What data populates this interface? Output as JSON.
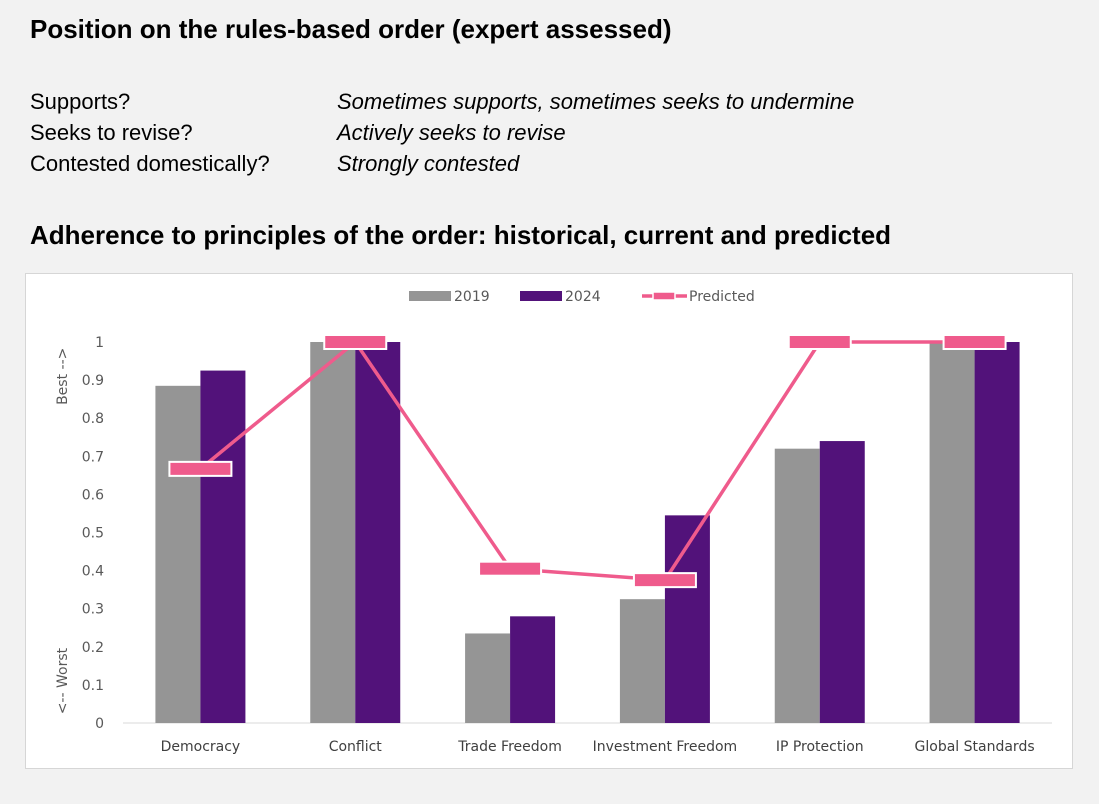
{
  "header": {
    "title": "Position on the rules-based order (expert assessed)"
  },
  "position": [
    {
      "label": "Supports?",
      "value": "Sometimes supports, sometimes seeks to undermine"
    },
    {
      "label": "Seeks to revise?",
      "value": "Actively seeks to revise"
    },
    {
      "label": "Contested domestically?",
      "value": "Strongly contested"
    }
  ],
  "section2": {
    "title": "Adherence to principles of the order: historical, current and predicted"
  },
  "chart_data": {
    "type": "bar",
    "categories": [
      "Democracy",
      "Conflict",
      "Trade Freedom",
      "Investment Freedom",
      "IP Protection",
      "Global Standards"
    ],
    "series": [
      {
        "name": "2019",
        "type": "bar",
        "color": "#959595",
        "values": [
          0.885,
          1.0,
          0.235,
          0.325,
          0.72,
          1.0
        ]
      },
      {
        "name": "2024",
        "type": "bar",
        "color": "#52127a",
        "values": [
          0.925,
          1.0,
          0.28,
          0.545,
          0.74,
          1.0
        ]
      },
      {
        "name": "Predicted",
        "type": "line",
        "color": "#ef5b8c",
        "values": [
          0.667,
          1.0,
          0.405,
          0.375,
          1.0,
          1.0
        ]
      }
    ],
    "ylim": [
      0,
      1
    ],
    "yticks": [
      "0",
      "0.1",
      "0.2",
      "0.3",
      "0.4",
      "0.5",
      "0.6",
      "0.7",
      "0.8",
      "0.9",
      "1"
    ],
    "ylabel_top": "Best -->",
    "ylabel_bottom": "<-- Worst",
    "legend_position": "top-center",
    "grid": false
  }
}
